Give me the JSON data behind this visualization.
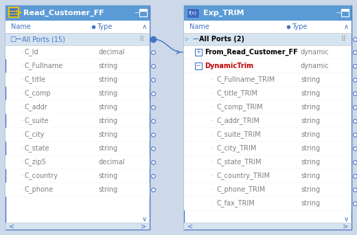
{
  "bg_color": "#cdd8e8",
  "panel_bg": "#ffffff",
  "header_bg": "#5b9bd5",
  "header_text_color": "#ffffff",
  "subheader_bg": "#d6e4f0",
  "row_text_color": "#7f7f7f",
  "blue": "#4472c4",
  "red": "#c00000",
  "link_color": "#4472c4",
  "left_panel": {
    "title": "Read_Customer_FF",
    "group_label": "All Ports (15)",
    "rows": [
      [
        "C_Id",
        "decimal"
      ],
      [
        "C_Fullname",
        "string"
      ],
      [
        "C_title",
        "string"
      ],
      [
        "C_comp",
        "string"
      ],
      [
        "C_addr",
        "string"
      ],
      [
        "C_suite",
        "string"
      ],
      [
        "C_city",
        "string"
      ],
      [
        "C_state",
        "string"
      ],
      [
        "C_zip5",
        "decimal"
      ],
      [
        "C_country",
        "string"
      ],
      [
        "C_phone",
        "string"
      ]
    ]
  },
  "right_panel": {
    "title": "Exp_TRIM",
    "group_label": "All Ports (2)",
    "dynamic_ports": [
      {
        "label": "From_Read_Customer_FF",
        "type": "dynamic",
        "expanded": false
      },
      {
        "label": "DynamicTrim",
        "type": "dynamic",
        "expanded": true,
        "children": [
          [
            "C_Fullname_TRIM",
            "string"
          ],
          [
            "C_title_TRIM",
            "string"
          ],
          [
            "C_comp_TRIM",
            "string"
          ],
          [
            "C_addr_TRIM",
            "string"
          ],
          [
            "C_suite_TRIM",
            "string"
          ],
          [
            "C_city_TRIM",
            "string"
          ],
          [
            "C_state_TRIM",
            "string"
          ],
          [
            "C_country_TRIM",
            "string"
          ],
          [
            "C_phone_TRIM",
            "string"
          ],
          [
            "C_fax_TRIM",
            "string"
          ]
        ]
      }
    ]
  }
}
